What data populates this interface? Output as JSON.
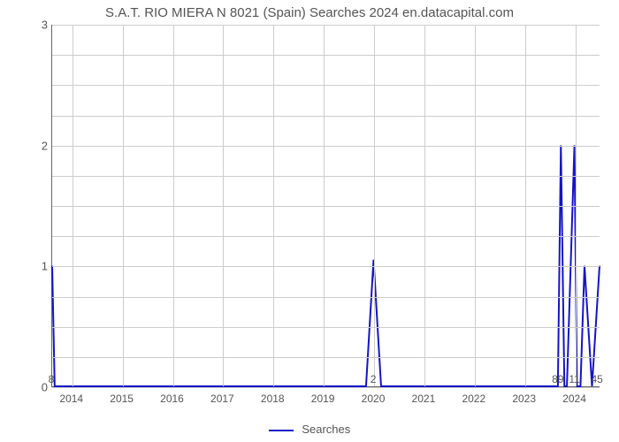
{
  "chart": {
    "type": "line",
    "title": "S.A.T. RIO MIERA N 8021 (Spain) Searches 2024 en.datacapital.com",
    "title_fontsize": 15,
    "title_color": "#555555",
    "background_color": "#ffffff",
    "plot_border_color": "#666666",
    "grid_color": "#cccccc",
    "axis_label_color": "#555555",
    "axis_label_fontsize": 13,
    "series": {
      "name": "Searches",
      "color": "#1414c8",
      "line_width": 2,
      "x": [
        2013.6,
        2013.65,
        2014,
        2015,
        2016,
        2017,
        2018,
        2019,
        2019.85,
        2020,
        2020.15,
        2021,
        2022,
        2023,
        2023.67,
        2023.73,
        2023.8,
        2023.85,
        2024.0,
        2024.05,
        2024.12,
        2024.2,
        2024.35,
        2024.5
      ],
      "y": [
        1.0,
        0.0,
        0.0,
        0.0,
        0.0,
        0.0,
        0.0,
        0.0,
        0.0,
        1.05,
        0.0,
        0.0,
        0.0,
        0.0,
        0.0,
        2.0,
        0.0,
        0.0,
        2.0,
        0.0,
        0.0,
        1.0,
        0.0,
        1.0
      ]
    },
    "x_axis": {
      "min": 2013.6,
      "max": 2024.5,
      "ticks": [
        2014,
        2015,
        2016,
        2017,
        2018,
        2019,
        2020,
        2021,
        2022,
        2023,
        2024
      ],
      "tick_labels": [
        "2014",
        "2015",
        "2016",
        "2017",
        "2018",
        "2019",
        "2020",
        "2021",
        "2022",
        "2023",
        "2024"
      ]
    },
    "y_axis": {
      "min": 0,
      "max": 3,
      "ticks": [
        0,
        1,
        2,
        3
      ],
      "tick_labels": [
        "0",
        "1",
        "2",
        "3"
      ],
      "minor_grid_per_interval": 4
    },
    "data_labels": [
      {
        "x": 2013.6,
        "y_anchor": 0,
        "text": "8"
      },
      {
        "x": 2020.0,
        "y_anchor": 0,
        "text": "2"
      },
      {
        "x": 2023.67,
        "y_anchor": 0,
        "text": "89"
      },
      {
        "x": 2024.0,
        "y_anchor": 0,
        "text": "11"
      },
      {
        "x": 2024.45,
        "y_anchor": 0,
        "text": "45"
      }
    ],
    "legend": {
      "items": [
        {
          "label": "Searches",
          "color": "#1414c8"
        }
      ]
    }
  }
}
